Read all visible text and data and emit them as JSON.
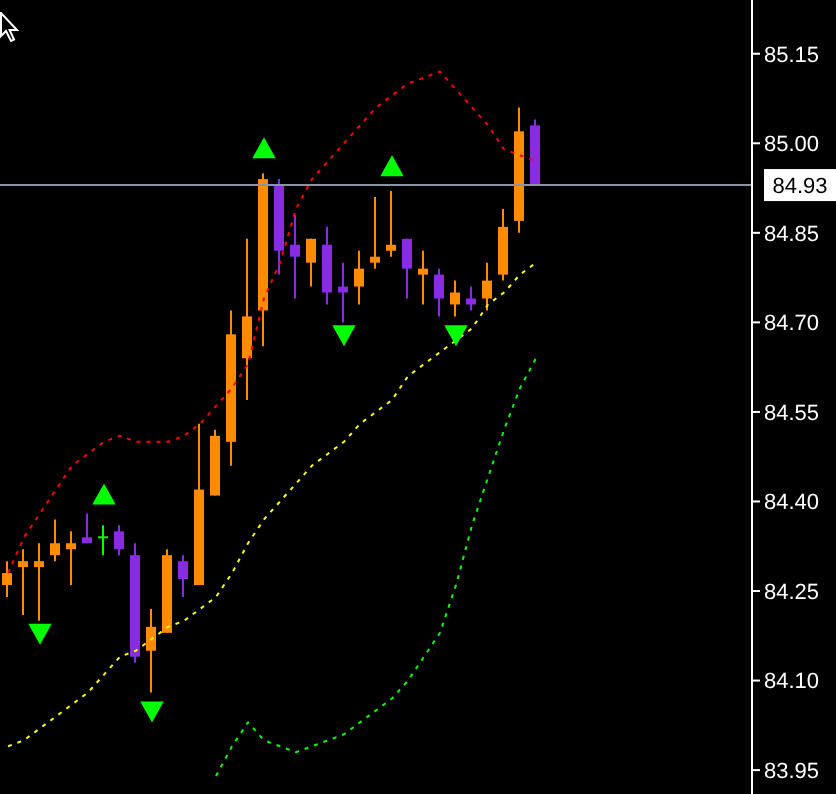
{
  "chart_data": {
    "type": "candlestick",
    "categories": [
      null,
      null,
      null,
      null,
      null,
      null,
      null,
      null,
      null,
      null,
      null,
      null,
      null,
      null,
      null,
      null,
      null,
      null,
      null,
      null,
      null,
      null,
      null,
      null,
      null,
      null,
      null,
      null,
      null,
      null,
      null,
      null,
      null,
      null
    ],
    "ohlc": [
      [
        84.26,
        84.3,
        84.24,
        84.28
      ],
      [
        84.29,
        84.32,
        84.21,
        84.3
      ],
      [
        84.29,
        84.33,
        84.2,
        84.3
      ],
      [
        84.31,
        84.37,
        84.3,
        84.33
      ],
      [
        84.32,
        84.35,
        84.26,
        84.33
      ],
      [
        84.34,
        84.38,
        84.33,
        84.33
      ],
      [
        84.34,
        84.36,
        84.31,
        84.34
      ],
      [
        84.35,
        84.36,
        84.31,
        84.32
      ],
      [
        84.31,
        84.33,
        84.13,
        84.14
      ],
      [
        84.15,
        84.22,
        84.08,
        84.19
      ],
      [
        84.18,
        84.32,
        84.18,
        84.31
      ],
      [
        84.3,
        84.31,
        84.24,
        84.27
      ],
      [
        84.26,
        84.53,
        84.26,
        84.42
      ],
      [
        84.41,
        84.52,
        84.41,
        84.51
      ],
      [
        84.5,
        84.72,
        84.46,
        84.68
      ],
      [
        84.64,
        84.84,
        84.57,
        84.71
      ],
      [
        84.72,
        84.95,
        84.66,
        84.94
      ],
      [
        84.93,
        84.94,
        84.78,
        84.82
      ],
      [
        84.83,
        84.88,
        84.74,
        84.81
      ],
      [
        84.8,
        84.84,
        84.76,
        84.84
      ],
      [
        84.83,
        84.86,
        84.73,
        84.75
      ],
      [
        84.76,
        84.8,
        84.7,
        84.75
      ],
      [
        84.76,
        84.82,
        84.73,
        84.79
      ],
      [
        84.8,
        84.91,
        84.79,
        84.81
      ],
      [
        84.82,
        84.92,
        84.81,
        84.83
      ],
      [
        84.84,
        84.84,
        84.74,
        84.79
      ],
      [
        84.78,
        84.82,
        84.73,
        84.79
      ],
      [
        84.78,
        84.79,
        84.71,
        84.74
      ],
      [
        84.73,
        84.77,
        84.71,
        84.75
      ],
      [
        84.74,
        84.76,
        84.72,
        84.73
      ],
      [
        84.74,
        84.8,
        84.72,
        84.77
      ],
      [
        84.78,
        84.89,
        84.77,
        84.86
      ],
      [
        84.87,
        85.06,
        84.85,
        85.02
      ],
      [
        85.03,
        85.04,
        84.93,
        84.93
      ]
    ],
    "colors": [
      "#ff8c00",
      "#ff8c00",
      "#ff8c00",
      "#ff8c00",
      "#ff8c00",
      "#8a2be2",
      "#00ff00",
      "#8a2be2",
      "#8a2be2",
      "#ff8c00",
      "#ff8c00",
      "#8a2be2",
      "#ff8c00",
      "#ff8c00",
      "#ff8c00",
      "#ff8c00",
      "#ff8c00",
      "#8a2be2",
      "#8a2be2",
      "#ff8c00",
      "#8a2be2",
      "#8a2be2",
      "#ff8c00",
      "#ff8c00",
      "#ff8c00",
      "#8a2be2",
      "#ff8c00",
      "#8a2be2",
      "#ff8c00",
      "#8a2be2",
      "#ff8c00",
      "#ff8c00",
      "#ff8c00",
      "#8a2be2"
    ],
    "series": [
      {
        "type": "line",
        "color": "#ff0000",
        "line_style": "dotted",
        "values": [
          84.28,
          84.34,
          84.38,
          84.42,
          84.46,
          84.48,
          84.5,
          84.51,
          84.5,
          84.5,
          84.5,
          84.51,
          84.53,
          84.56,
          84.59,
          84.63,
          84.74,
          84.8,
          84.89,
          84.94,
          84.97,
          85.0,
          85.03,
          85.06,
          85.08,
          85.1,
          85.11,
          85.12,
          85.09,
          85.06,
          85.03,
          84.99,
          84.98,
          84.97
        ]
      },
      {
        "type": "line",
        "color": "#ffff00",
        "line_style": "dotted",
        "values": [
          83.99,
          84.0,
          84.02,
          84.04,
          84.06,
          84.08,
          84.11,
          84.14,
          84.15,
          84.17,
          84.19,
          84.2,
          84.22,
          84.24,
          84.28,
          84.33,
          84.37,
          84.4,
          84.43,
          84.46,
          84.48,
          84.5,
          84.53,
          84.55,
          84.57,
          84.61,
          84.63,
          84.65,
          84.67,
          84.69,
          84.73,
          84.75,
          84.78,
          84.8
        ]
      },
      {
        "type": "line",
        "color": "#00ff00",
        "line_style": "dotted",
        "values": [
          null,
          null,
          null,
          null,
          null,
          null,
          null,
          null,
          null,
          null,
          null,
          null,
          null,
          83.94,
          83.99,
          84.03,
          84.0,
          83.99,
          83.98,
          83.99,
          84.0,
          84.01,
          84.03,
          84.05,
          84.07,
          84.1,
          84.14,
          84.18,
          84.26,
          84.36,
          84.44,
          84.52,
          84.59,
          84.64
        ]
      },
      {
        "type": "scatter",
        "color": "#00ff00",
        "marker": "triangle",
        "values": [
          null,
          null,
          null,
          null,
          null,
          null,
          84.41,
          null,
          null,
          null,
          null,
          null,
          null,
          null,
          null,
          null,
          84.99,
          null,
          null,
          null,
          null,
          null,
          null,
          null,
          84.96,
          null,
          null,
          null,
          null,
          null,
          null,
          null,
          null,
          null
        ]
      },
      {
        "type": "scatter",
        "color": "#00ff00",
        "marker": "triangle",
        "values": [
          null,
          null,
          84.18,
          null,
          null,
          null,
          null,
          null,
          null,
          84.05,
          null,
          null,
          null,
          null,
          null,
          null,
          null,
          null,
          null,
          null,
          null,
          84.68,
          null,
          null,
          null,
          null,
          null,
          null,
          84.68,
          null,
          null,
          null,
          null,
          null
        ]
      }
    ],
    "ylim": [
      83.91,
      85.24
    ],
    "yticks": [
      83.95,
      {
        "value": 84.1,
        "label": "84.10"
      },
      84.25,
      {
        "value": 84.4,
        "label": "84.40"
      },
      84.55,
      {
        "value": 84.7,
        "label": "84.70"
      },
      84.85,
      {
        "value": 85,
        "label": "85.00"
      },
      85.15
    ],
    "ref_lines": [
      {
        "axis": "y",
        "value": 84.93,
        "label": "84.93",
        "color": "#8a96a6"
      }
    ],
    "legend": false
  }
}
